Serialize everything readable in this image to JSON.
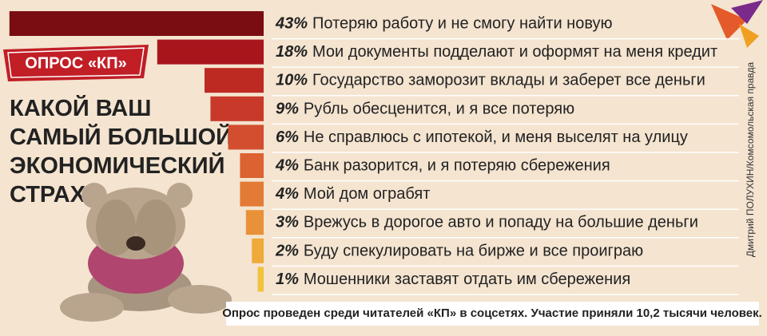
{
  "chart_data": {
    "type": "bar",
    "title": "КАКОЙ ВАШ САМЫЙ БОЛЬШОЙ ЭКОНОМИЧЕСКИЙ СТРАХ?",
    "badge": "ОПРОС «КП»",
    "categories": [
      "Потеряю работу и не смогу найти новую",
      "Мои документы подделают и оформят на меня кредит",
      "Государство заморозит вклады и заберет все деньги",
      "Рубль обесценится, и я все потеряю",
      "Не справлюсь с ипотекой, и меня выселят на улицу",
      "Банк разорится, и я потеряю сбережения",
      "Мой дом ограбят",
      "Врежусь в дорогое авто и попаду на большие деньги",
      "Буду спекулировать на бирже и все проиграю",
      "Мошенники заставят отдать им сбережения"
    ],
    "values": [
      43,
      18,
      10,
      9,
      6,
      4,
      4,
      3,
      2,
      1
    ],
    "value_labels": [
      "43%",
      "18%",
      "10%",
      "9%",
      "6%",
      "4%",
      "4%",
      "3%",
      "2%",
      "1%"
    ],
    "colors": [
      "#7a0d12",
      "#a8161c",
      "#bd2a22",
      "#c8392a",
      "#d24e2e",
      "#dc6232",
      "#e37a36",
      "#e99139",
      "#eeaa3a",
      "#f1c23c"
    ],
    "note": "Опрос проведен среди читателей «КП» в соцсетях. Участие приняли 10,2 тысячи человек.",
    "credit": "Дмитрий ПОЛУХИН/Комсомольская правда"
  }
}
